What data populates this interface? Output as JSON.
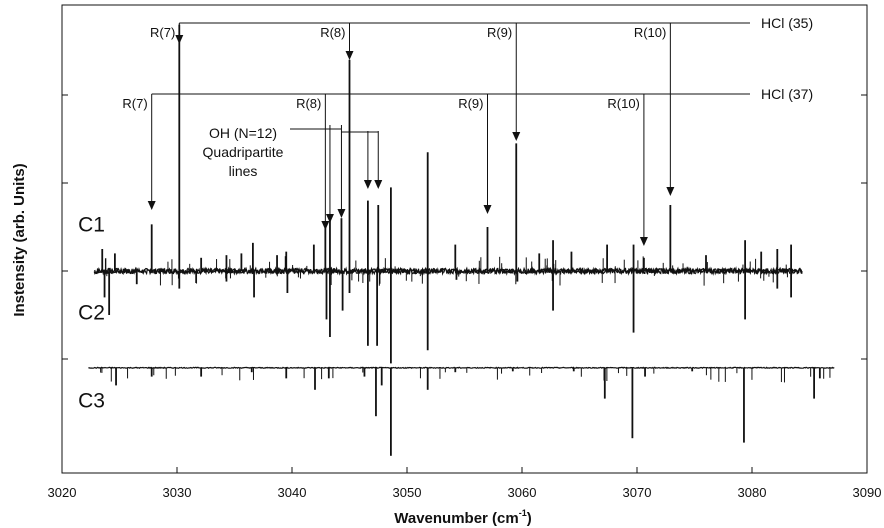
{
  "chart_data": {
    "type": "line",
    "xlabel": "Wavenumber (cm",
    "xlabel_sup": "-1",
    "xlabel_close": ")",
    "ylabel": "Instensity (arb. Units)",
    "xlim": [
      3020,
      3090
    ],
    "x_ticks": [
      "3020",
      "3030",
      "3040",
      "3050",
      "3060",
      "3070",
      "3080",
      "3090"
    ],
    "x_tick_values": [
      3020,
      3030,
      3040,
      3050,
      3060,
      3070,
      3080,
      3090
    ],
    "series": [
      {
        "name": "C1",
        "baseline": 0.0,
        "x_range": [
          3022.8,
          3084.4
        ],
        "peaks": [
          {
            "x": 3023.5,
            "y": 0.25
          },
          {
            "x": 3024.6,
            "y": 0.2
          },
          {
            "x": 3027.8,
            "y": 0.53
          },
          {
            "x": 3030.2,
            "y": 2.8
          },
          {
            "x": 3032.1,
            "y": 0.15
          },
          {
            "x": 3034.3,
            "y": 0.18
          },
          {
            "x": 3035.6,
            "y": 0.2
          },
          {
            "x": 3036.6,
            "y": 0.32
          },
          {
            "x": 3038.7,
            "y": 0.18
          },
          {
            "x": 3039.5,
            "y": 0.22
          },
          {
            "x": 3041.9,
            "y": 0.3
          },
          {
            "x": 3042.9,
            "y": 0.52
          },
          {
            "x": 3043.3,
            "y": 0.6
          },
          {
            "x": 3044.3,
            "y": 0.6
          },
          {
            "x": 3045.0,
            "y": 2.4
          },
          {
            "x": 3046.6,
            "y": 0.8
          },
          {
            "x": 3047.5,
            "y": 0.75
          },
          {
            "x": 3048.6,
            "y": 0.95
          },
          {
            "x": 3051.8,
            "y": 1.35
          },
          {
            "x": 3054.2,
            "y": 0.3
          },
          {
            "x": 3057.0,
            "y": 0.5
          },
          {
            "x": 3059.5,
            "y": 1.45
          },
          {
            "x": 3061.5,
            "y": 0.2
          },
          {
            "x": 3062.7,
            "y": 0.35
          },
          {
            "x": 3064.3,
            "y": 0.22
          },
          {
            "x": 3067.4,
            "y": 0.3
          },
          {
            "x": 3069.7,
            "y": 0.3
          },
          {
            "x": 3070.6,
            "y": 0.15
          },
          {
            "x": 3072.9,
            "y": 0.75
          },
          {
            "x": 3076.0,
            "y": 0.18
          },
          {
            "x": 3079.4,
            "y": 0.35
          },
          {
            "x": 3080.8,
            "y": 0.22
          },
          {
            "x": 3082.2,
            "y": 0.25
          },
          {
            "x": 3083.4,
            "y": 0.3
          }
        ]
      },
      {
        "name": "C2",
        "baseline": 0.0,
        "x_range": [
          3022.8,
          3084.4
        ],
        "peaks": [
          {
            "x": 3023.7,
            "y": -0.3
          },
          {
            "x": 3024.1,
            "y": -0.5
          },
          {
            "x": 3026.5,
            "y": -0.15
          },
          {
            "x": 3030.2,
            "y": -0.2
          },
          {
            "x": 3034.3,
            "y": -0.12
          },
          {
            "x": 3036.7,
            "y": -0.3
          },
          {
            "x": 3039.6,
            "y": -0.25
          },
          {
            "x": 3043.0,
            "y": -0.55
          },
          {
            "x": 3043.3,
            "y": -0.75
          },
          {
            "x": 3044.4,
            "y": -0.45
          },
          {
            "x": 3045.0,
            "y": -0.25
          },
          {
            "x": 3046.6,
            "y": -0.85
          },
          {
            "x": 3047.4,
            "y": -0.85
          },
          {
            "x": 3048.6,
            "y": -1.05
          },
          {
            "x": 3051.8,
            "y": -0.9
          },
          {
            "x": 3054.3,
            "y": -0.1
          },
          {
            "x": 3059.6,
            "y": -0.12
          },
          {
            "x": 3062.7,
            "y": -0.45
          },
          {
            "x": 3069.7,
            "y": -0.7
          },
          {
            "x": 3079.4,
            "y": -0.55
          },
          {
            "x": 3082.2,
            "y": -0.2
          },
          {
            "x": 3083.4,
            "y": -0.3
          }
        ]
      },
      {
        "name": "C3",
        "baseline": -1.1,
        "x_range": [
          3022.3,
          3087.2
        ],
        "peaks": [
          {
            "x": 3024.7,
            "y": -1.3
          },
          {
            "x": 3027.8,
            "y": -1.2
          },
          {
            "x": 3032.1,
            "y": -1.2
          },
          {
            "x": 3036.5,
            "y": -1.15
          },
          {
            "x": 3039.5,
            "y": -1.22
          },
          {
            "x": 3042.0,
            "y": -1.35
          },
          {
            "x": 3043.2,
            "y": -1.22
          },
          {
            "x": 3046.3,
            "y": -1.2
          },
          {
            "x": 3047.3,
            "y": -1.65
          },
          {
            "x": 3047.8,
            "y": -1.3
          },
          {
            "x": 3048.6,
            "y": -2.1
          },
          {
            "x": 3051.8,
            "y": -1.35
          },
          {
            "x": 3054.2,
            "y": -1.15
          },
          {
            "x": 3059.2,
            "y": -1.14
          },
          {
            "x": 3064.5,
            "y": -1.14
          },
          {
            "x": 3067.2,
            "y": -1.45
          },
          {
            "x": 3069.6,
            "y": -1.9
          },
          {
            "x": 3070.7,
            "y": -1.2
          },
          {
            "x": 3074.8,
            "y": -1.14
          },
          {
            "x": 3079.3,
            "y": -1.95
          },
          {
            "x": 3085.4,
            "y": -1.45
          },
          {
            "x": 3085.9,
            "y": -1.22
          }
        ]
      }
    ],
    "series_labels": [
      {
        "text": "C1",
        "x": 3021.4,
        "y": 0.45
      },
      {
        "text": "C2",
        "x": 3021.4,
        "y": -0.55
      },
      {
        "text": "C3",
        "x": 3021.4,
        "y": -1.55
      }
    ],
    "annotations": {
      "hcl35": {
        "label": "HCl (35)",
        "markers": [
          {
            "text": "R(7)",
            "x": 3030.2
          },
          {
            "text": "R(8)",
            "x": 3045.0
          },
          {
            "text": "R(9)",
            "x": 3059.5
          },
          {
            "text": "R(10)",
            "x": 3072.9
          }
        ]
      },
      "hcl37": {
        "label": "HCl (37)",
        "markers": [
          {
            "text": "R(7)",
            "x": 3027.8
          },
          {
            "text": "R(8)",
            "x": 3042.9
          },
          {
            "text": "R(9)",
            "x": 3057.0
          },
          {
            "text": "R(10)",
            "x": 3070.6
          }
        ]
      },
      "oh": {
        "label_lines": [
          "OH (N=12)",
          "Quadripartite",
          "lines"
        ],
        "markers": [
          3043.3,
          3044.3,
          3046.6,
          3047.5
        ]
      }
    }
  }
}
